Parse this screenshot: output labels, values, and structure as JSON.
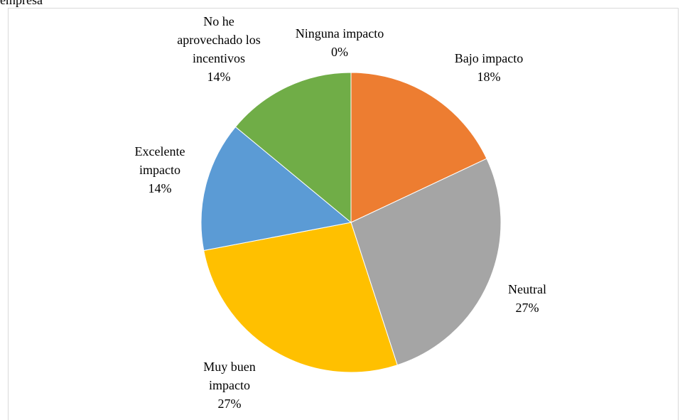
{
  "caption_fragment": "empresa",
  "chart_data": {
    "type": "pie",
    "title": "",
    "categories": [
      "Ninguna impacto",
      "Bajo impacto",
      "Neutral",
      "Muy buen impacto",
      "Excelente impacto",
      "No he aprovechado los incentivos"
    ],
    "values": [
      0,
      18,
      27,
      27,
      14,
      14
    ],
    "percent_labels": [
      "0%",
      "18%",
      "27%",
      "27%",
      "14%",
      "14%"
    ],
    "colors": [
      "#4472C4",
      "#ED7D31",
      "#A5A5A5",
      "#FFC000",
      "#5B9BD5",
      "#70AD47"
    ],
    "legend": "none",
    "data_labels": [
      [
        "Ninguna impacto"
      ],
      [
        "Bajo impacto"
      ],
      [
        "Neutral"
      ],
      [
        "Muy buen",
        "impacto"
      ],
      [
        "Excelente",
        "impacto"
      ],
      [
        "No he",
        "aprovechado los",
        "incentivos"
      ]
    ]
  }
}
